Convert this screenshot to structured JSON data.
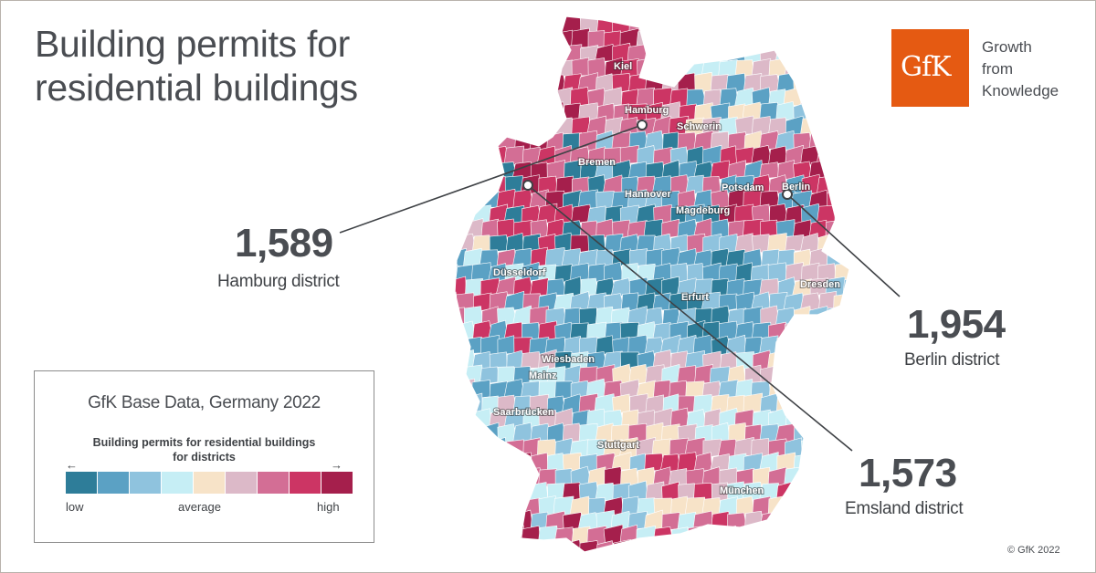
{
  "title": {
    "line1": "Building permits for",
    "line2": "residential buildings"
  },
  "logo": {
    "mark": "GfK",
    "tagline": [
      "Growth",
      "from",
      "Knowledge"
    ],
    "color": "#e55a12"
  },
  "cities": [
    "Kiel",
    "Hamburg",
    "Schwerin",
    "Bremen",
    "Hannover",
    "Potsdam",
    "Berlin",
    "Magdeburg",
    "Düsseldorf",
    "Erfurt",
    "Dresden",
    "Wiesbaden",
    "Mainz",
    "Saarbrücken",
    "Stuttgart",
    "München"
  ],
  "callouts": [
    {
      "value": "1,589",
      "label": "Hamburg district"
    },
    {
      "value": "1,954",
      "label": "Berlin district"
    },
    {
      "value": "1,573",
      "label": "Emsland district"
    }
  ],
  "legend": {
    "title": "GfK Base Data, Germany 2022",
    "subtitle_line1": "Building permits for residential buildings",
    "subtitle_line2": "for districts",
    "arrow_left": "←",
    "arrow_right": "→",
    "low": "low",
    "average": "average",
    "high": "high",
    "scale": [
      "#2e7d99",
      "#5ba1c4",
      "#8fc3de",
      "#c6eef5",
      "#f7e3c8",
      "#dcb9c8",
      "#d36e95",
      "#cc3564",
      "#a51f4c"
    ]
  },
  "copyright": "© GfK 2022"
}
